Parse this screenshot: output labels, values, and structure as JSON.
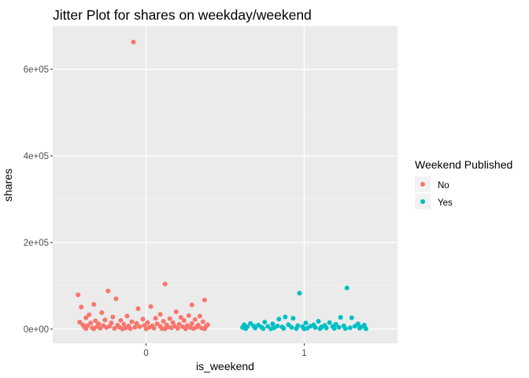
{
  "chart_data": {
    "type": "scatter",
    "title": "Jitter Plot for shares on weekday/weekend",
    "xlabel": "is_weekend",
    "ylabel": "shares",
    "x_categories": [
      "0",
      "1"
    ],
    "x_range": [
      -0.59,
      1.59
    ],
    "ylim": [
      -33000,
      700000
    ],
    "y_ticks": [
      0,
      200000,
      400000,
      600000
    ],
    "y_tick_labels": [
      "0e+00",
      "2e+05",
      "4e+05",
      "6e+05"
    ],
    "grid": true,
    "legend": {
      "title": "Weekend Published",
      "position": "right",
      "entries": [
        {
          "label": "No",
          "color": "#F8766D"
        },
        {
          "label": "Yes",
          "color": "#00BFC4"
        }
      ]
    },
    "series": [
      {
        "name": "No",
        "color": "#F8766D",
        "points": [
          [
            -0.08,
            663000
          ],
          [
            0.12,
            104000
          ],
          [
            -0.24,
            88000
          ],
          [
            -0.43,
            79000
          ],
          [
            0.37,
            67000
          ],
          [
            -0.19,
            70000
          ],
          [
            0.29,
            56000
          ],
          [
            -0.33,
            57000
          ],
          [
            0.03,
            52000
          ],
          [
            -0.41,
            51000
          ],
          [
            -0.05,
            47000
          ],
          [
            0.19,
            40000
          ],
          [
            -0.28,
            38000
          ],
          [
            0.09,
            34000
          ],
          [
            -0.36,
            33000
          ],
          [
            0.27,
            31000
          ],
          [
            -0.12,
            30000
          ],
          [
            0.34,
            30000
          ],
          [
            -0.21,
            28000
          ],
          [
            0.22,
            27000
          ],
          [
            -0.38,
            26000
          ],
          [
            0.06,
            25000
          ],
          [
            0.15,
            24000
          ],
          [
            -0.02,
            23000
          ],
          [
            0.31,
            22000
          ],
          [
            -0.26,
            21000
          ],
          [
            -0.16,
            20000
          ],
          [
            0.24,
            20000
          ],
          [
            -0.32,
            19000
          ],
          [
            0.11,
            18000
          ],
          [
            -0.09,
            17000
          ],
          [
            0.36,
            17000
          ],
          [
            -0.42,
            16000
          ],
          [
            0.01,
            15000
          ],
          [
            0.17,
            15000
          ],
          [
            -0.22,
            14000
          ],
          [
            -0.35,
            14000
          ],
          [
            0.29,
            13000
          ],
          [
            -0.06,
            13000
          ],
          [
            0.07,
            12000
          ],
          [
            -0.3,
            12000
          ],
          [
            0.21,
            11000
          ],
          [
            -0.14,
            11000
          ],
          [
            0.39,
            10000
          ],
          [
            -0.4,
            10000
          ],
          [
            0.13,
            9500
          ],
          [
            -0.18,
            9000
          ],
          [
            0.33,
            9000
          ],
          [
            -0.01,
            8500
          ],
          [
            -0.27,
            8000
          ],
          [
            0.26,
            8000
          ],
          [
            0.04,
            7500
          ],
          [
            -0.37,
            7500
          ],
          [
            -0.11,
            7000
          ],
          [
            0.18,
            7000
          ],
          [
            -0.23,
            6500
          ],
          [
            0.38,
            6500
          ],
          [
            0.09,
            6000
          ],
          [
            -0.31,
            6000
          ],
          [
            -0.04,
            5500
          ],
          [
            0.23,
            5500
          ],
          [
            -0.39,
            5000
          ],
          [
            0.14,
            5000
          ],
          [
            -0.17,
            4500
          ],
          [
            0.32,
            4500
          ],
          [
            -0.07,
            4000
          ],
          [
            0.02,
            4000
          ],
          [
            -0.25,
            3500
          ],
          [
            0.28,
            3500
          ],
          [
            -0.34,
            3000
          ],
          [
            0.16,
            3000
          ],
          [
            -0.13,
            2500
          ],
          [
            0.35,
            2500
          ],
          [
            0.05,
            2000
          ],
          [
            -0.29,
            2000
          ],
          [
            0.2,
            1500
          ],
          [
            -0.2,
            1500
          ],
          [
            -0.38,
            1200
          ],
          [
            0.1,
            1000
          ],
          [
            0.3,
            1000
          ],
          [
            -0.1,
            800
          ],
          [
            0.25,
            700
          ],
          [
            -0.33,
            600
          ],
          [
            0.0,
            500
          ],
          [
            0.37,
            500
          ],
          [
            -0.15,
            400
          ],
          [
            0.12,
            300
          ]
        ]
      },
      {
        "name": "Yes",
        "color": "#00BFC4",
        "points": [
          [
            1.27,
            95000
          ],
          [
            0.97,
            83000
          ],
          [
            1.23,
            27000
          ],
          [
            0.88,
            28000
          ],
          [
            1.3,
            26000
          ],
          [
            0.93,
            25000
          ],
          [
            0.84,
            23000
          ],
          [
            1.09,
            18000
          ],
          [
            0.75,
            16000
          ],
          [
            1.16,
            15000
          ],
          [
            1.01,
            14000
          ],
          [
            0.66,
            13000
          ],
          [
            1.34,
            12000
          ],
          [
            0.8,
            12000
          ],
          [
            1.2,
            11000
          ],
          [
            0.9,
            10000
          ],
          [
            0.62,
            10000
          ],
          [
            1.06,
            9500
          ],
          [
            1.38,
            9000
          ],
          [
            0.71,
            9000
          ],
          [
            1.13,
            8500
          ],
          [
            0.96,
            8000
          ],
          [
            0.68,
            7500
          ],
          [
            1.25,
            7500
          ],
          [
            0.83,
            7000
          ],
          [
            1.04,
            6500
          ],
          [
            1.32,
            6500
          ],
          [
            0.77,
            6000
          ],
          [
            1.18,
            6000
          ],
          [
            0.64,
            5500
          ],
          [
            0.99,
            5500
          ],
          [
            1.11,
            5000
          ],
          [
            0.86,
            5000
          ],
          [
            1.36,
            4500
          ],
          [
            0.73,
            4500
          ],
          [
            1.22,
            4000
          ],
          [
            0.92,
            4000
          ],
          [
            0.61,
            3500
          ],
          [
            1.07,
            3500
          ],
          [
            1.29,
            3000
          ],
          [
            0.81,
            3000
          ],
          [
            1.14,
            2500
          ],
          [
            0.69,
            2500
          ],
          [
            1.02,
            2000
          ],
          [
            1.35,
            2000
          ],
          [
            0.87,
            1500
          ],
          [
            1.19,
            1500
          ],
          [
            0.74,
            1200
          ],
          [
            1.26,
            1000
          ],
          [
            0.95,
            1000
          ],
          [
            0.63,
            800
          ],
          [
            1.1,
            800
          ],
          [
            1.39,
            600
          ],
          [
            0.79,
            600
          ],
          [
            1.0,
            400
          ]
        ]
      }
    ]
  }
}
